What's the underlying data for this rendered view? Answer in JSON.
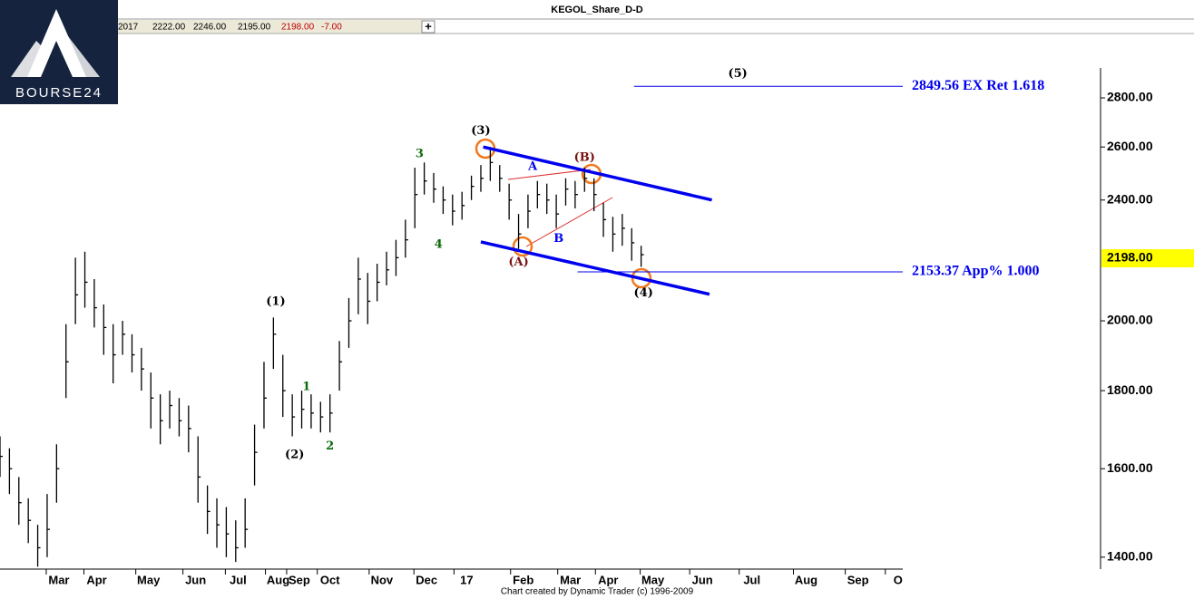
{
  "header": {
    "title": "KEGOL_Share_D-D",
    "fields": [
      "2017",
      "2222.00",
      "2246.00",
      "2195.00",
      "2198.00",
      "-7.00"
    ],
    "footer": "Chart created by Dynamic Trader  (c) 1996-2009",
    "logo": "BOURSE24"
  },
  "chart_data": {
    "type": "ohlc",
    "log_scale": true,
    "color": "#000000",
    "x": [
      0,
      4,
      8,
      12,
      16,
      20,
      24,
      28,
      32,
      36,
      40,
      44,
      48,
      52,
      56,
      60,
      64,
      68,
      72,
      76,
      80,
      84,
      88,
      92,
      96,
      100,
      104,
      108,
      112,
      116,
      120,
      124,
      128,
      132,
      136,
      140,
      144,
      148,
      152,
      156,
      160,
      164,
      168,
      172,
      176,
      180,
      184,
      188,
      192,
      196,
      200,
      204,
      208,
      212,
      216,
      220,
      224,
      228,
      232,
      236,
      240,
      244,
      248,
      252,
      256,
      260,
      264,
      268,
      272
    ],
    "high": [
      1680,
      1650,
      1580,
      1530,
      1470,
      1540,
      1660,
      1990,
      2200,
      2220,
      2130,
      2050,
      1990,
      2000,
      1960,
      1920,
      1850,
      1790,
      1800,
      1780,
      1760,
      1680,
      1560,
      1530,
      1510,
      1480,
      1530,
      1710,
      1880,
      2010,
      1900,
      1790,
      1800,
      1790,
      1770,
      1790,
      1940,
      2070,
      2200,
      2150,
      2180,
      2220,
      2260,
      2330,
      2520,
      2540,
      2500,
      2450,
      2420,
      2430,
      2490,
      2530,
      2600,
      2530,
      2460,
      2350,
      2420,
      2470,
      2460,
      2420,
      2480,
      2470,
      2520,
      2480,
      2390,
      2340,
      2350,
      2300,
      2240
    ],
    "low": [
      1580,
      1540,
      1470,
      1430,
      1380,
      1400,
      1520,
      1780,
      1990,
      2040,
      1980,
      1900,
      1820,
      1900,
      1850,
      1800,
      1700,
      1660,
      1700,
      1680,
      1640,
      1520,
      1450,
      1420,
      1400,
      1390,
      1420,
      1560,
      1700,
      1860,
      1730,
      1680,
      1700,
      1700,
      1690,
      1690,
      1800,
      1920,
      2020,
      1990,
      2060,
      2110,
      2140,
      2200,
      2300,
      2420,
      2390,
      2350,
      2310,
      2330,
      2400,
      2430,
      2470,
      2430,
      2330,
      2230,
      2300,
      2370,
      2350,
      2300,
      2380,
      2370,
      2430,
      2360,
      2270,
      2220,
      2240,
      2190,
      2170
    ],
    "close": [
      1630,
      1600,
      1520,
      1480,
      1420,
      1460,
      1600,
      1880,
      2080,
      2120,
      2040,
      1980,
      1900,
      1960,
      1900,
      1860,
      1780,
      1720,
      1760,
      1720,
      1700,
      1580,
      1500,
      1470,
      1450,
      1420,
      1460,
      1640,
      1780,
      1960,
      1800,
      1730,
      1750,
      1740,
      1730,
      1740,
      1880,
      2000,
      2130,
      2060,
      2120,
      2160,
      2200,
      2260,
      2420,
      2470,
      2440,
      2400,
      2360,
      2380,
      2450,
      2480,
      2540,
      2480,
      2400,
      2280,
      2360,
      2420,
      2400,
      2350,
      2440,
      2420,
      2480,
      2420,
      2330,
      2280,
      2300,
      2250,
      2210
    ],
    "xlim": [
      0,
      383
    ],
    "ylim": [
      1375,
      3073
    ],
    "xticks": [
      {
        "value": 25,
        "label": "Mar"
      },
      {
        "value": 41,
        "label": "Apr"
      },
      {
        "value": 63,
        "label": "May"
      },
      {
        "value": 83,
        "label": "Jun"
      },
      {
        "value": 101,
        "label": "Jul"
      },
      {
        "value": 118,
        "label": "Aug"
      },
      {
        "value": 127,
        "label": "Sep"
      },
      {
        "value": 140,
        "label": "Oct"
      },
      {
        "value": 162,
        "label": "Nov"
      },
      {
        "value": 181,
        "label": "Dec"
      },
      {
        "value": 198,
        "label": "17"
      },
      {
        "value": 222,
        "label": "Feb"
      },
      {
        "value": 242,
        "label": "Mar"
      },
      {
        "value": 258,
        "label": "Apr"
      },
      {
        "value": 277,
        "label": "May"
      },
      {
        "value": 298,
        "label": "Jun"
      },
      {
        "value": 319,
        "label": "Jul"
      },
      {
        "value": 342,
        "label": "Aug"
      },
      {
        "value": 364,
        "label": "Sep"
      },
      {
        "value": 381,
        "label": "O"
      }
    ],
    "yticks": [
      {
        "value": 1400,
        "label": "1400.00"
      },
      {
        "value": 1600,
        "label": "1600.00"
      },
      {
        "value": 1800,
        "label": "1800.00"
      },
      {
        "value": 2000,
        "label": "2000.00"
      },
      {
        "value": 2400,
        "label": "2400.00"
      },
      {
        "value": 2600,
        "label": "2600.00"
      },
      {
        "value": 2800,
        "label": "2800.00"
      }
    ],
    "last_price": {
      "value": 2198,
      "label": "2198.00"
    },
    "trendlines": [
      {
        "x": [
          205,
          302
        ],
        "y": [
          2600,
          2400
        ],
        "color": "#0000ee"
      },
      {
        "x": [
          204,
          301
        ],
        "y": [
          2253,
          2082
        ],
        "color": "#0000ee"
      }
    ],
    "levels": [
      {
        "value": 2849.56,
        "x": [
          269,
          383
        ],
        "label": "2849.56 EX Ret 1.618",
        "color": "#0000ee"
      },
      {
        "value": 2153.37,
        "x": [
          245,
          383
        ],
        "label": "2153.37 App% 1.000",
        "color": "#0000ee"
      }
    ],
    "annotations": [
      {
        "text": "(5)",
        "x": 313,
        "y": 2903,
        "color": "#000000"
      },
      {
        "text": "(3)",
        "x": 204,
        "y": 2663,
        "color": "#000000"
      },
      {
        "text": "(B)",
        "x": 248,
        "y": 2559,
        "color": "#7a1010"
      },
      {
        "text": "A",
        "x": 226,
        "y": 2524,
        "color": "#0000ee"
      },
      {
        "text": "B",
        "x": 237,
        "y": 2263,
        "color": "#0000ee"
      },
      {
        "text": "(A)",
        "x": 220,
        "y": 2184,
        "color": "#7a1010"
      },
      {
        "text": "(4)",
        "x": 273,
        "y": 2085,
        "color": "#000000"
      },
      {
        "text": "(1)",
        "x": 117,
        "y": 2059,
        "color": "#000000"
      },
      {
        "text": "(2)",
        "x": 125,
        "y": 1634,
        "color": "#000000"
      },
      {
        "text": "1",
        "x": 130,
        "y": 1810,
        "color": "#0a6a0a"
      },
      {
        "text": "2",
        "x": 140,
        "y": 1655,
        "color": "#0a6a0a"
      },
      {
        "text": "3",
        "x": 178,
        "y": 2573,
        "color": "#0a6a0a"
      },
      {
        "text": "4",
        "x": 186,
        "y": 2244,
        "color": "#0a6a0a"
      }
    ]
  }
}
